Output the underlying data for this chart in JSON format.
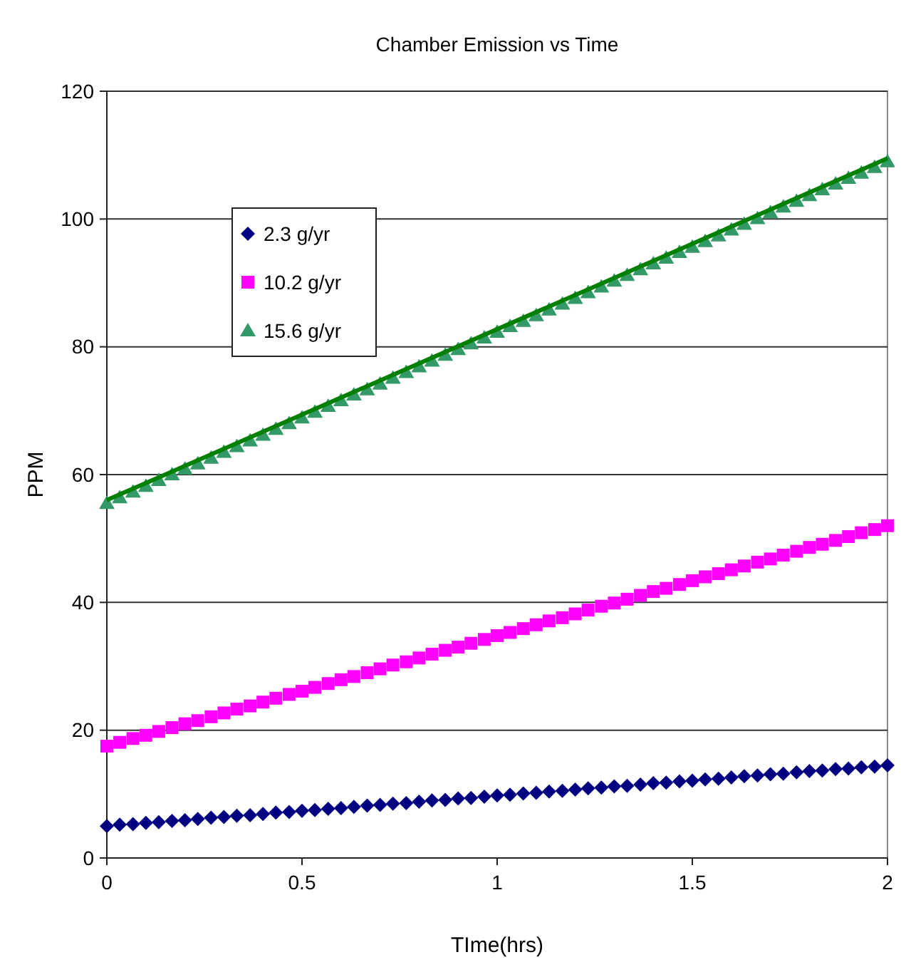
{
  "chart_data": {
    "type": "scatter",
    "title": "Chamber Emission vs Time",
    "xlabel": "TIme(hrs)",
    "ylabel": "PPM",
    "x": [
      0,
      0.033,
      0.067,
      0.1,
      0.133,
      0.167,
      0.2,
      0.233,
      0.267,
      0.3,
      0.333,
      0.367,
      0.4,
      0.433,
      0.467,
      0.5,
      0.533,
      0.567,
      0.6,
      0.633,
      0.667,
      0.7,
      0.733,
      0.767,
      0.8,
      0.833,
      0.867,
      0.9,
      0.933,
      0.967,
      1,
      1.033,
      1.067,
      1.1,
      1.133,
      1.167,
      1.2,
      1.233,
      1.267,
      1.3,
      1.333,
      1.367,
      1.4,
      1.433,
      1.467,
      1.5,
      1.533,
      1.567,
      1.6,
      1.633,
      1.667,
      1.7,
      1.733,
      1.767,
      1.8,
      1.833,
      1.867,
      1.9,
      1.933,
      1.967,
      2
    ],
    "series": [
      {
        "name": "2.3 g/yr",
        "color": "#000080",
        "marker": "diamond",
        "values": [
          5.0,
          5.2,
          5.3,
          5.5,
          5.6,
          5.8,
          5.9,
          6.1,
          6.3,
          6.4,
          6.6,
          6.7,
          6.9,
          7.1,
          7.2,
          7.4,
          7.5,
          7.7,
          7.8,
          8.0,
          8.2,
          8.3,
          8.5,
          8.6,
          8.8,
          9.0,
          9.1,
          9.3,
          9.4,
          9.6,
          9.8,
          9.9,
          10.1,
          10.2,
          10.4,
          10.5,
          10.7,
          10.9,
          11.0,
          11.2,
          11.3,
          11.5,
          11.7,
          11.8,
          12.0,
          12.1,
          12.3,
          12.4,
          12.6,
          12.8,
          12.9,
          13.1,
          13.2,
          13.4,
          13.6,
          13.7,
          13.9,
          14.0,
          14.2,
          14.3,
          14.5
        ]
      },
      {
        "name": "10.2 g/yr",
        "color": "#ff00ff",
        "marker": "square",
        "values": [
          17.5,
          18.1,
          18.7,
          19.2,
          19.8,
          20.4,
          21.0,
          21.5,
          22.1,
          22.7,
          23.3,
          23.8,
          24.4,
          25.0,
          25.6,
          26.1,
          26.7,
          27.3,
          27.9,
          28.4,
          29.0,
          29.6,
          30.2,
          30.7,
          31.3,
          31.9,
          32.5,
          33.0,
          33.6,
          34.2,
          34.8,
          35.3,
          35.9,
          36.5,
          37.1,
          37.6,
          38.2,
          38.8,
          39.4,
          39.9,
          40.5,
          41.1,
          41.7,
          42.2,
          42.8,
          43.4,
          44.0,
          44.5,
          45.1,
          45.7,
          46.3,
          46.8,
          47.4,
          48.0,
          48.6,
          49.1,
          49.7,
          50.3,
          50.9,
          51.4,
          52.0
        ]
      },
      {
        "name": "15.6 g/yr",
        "color": "#339966",
        "marker": "triangle",
        "values": [
          55.5,
          56.4,
          57.3,
          58.2,
          59.1,
          60.0,
          60.9,
          61.7,
          62.6,
          63.5,
          64.4,
          65.3,
          66.2,
          67.1,
          68.0,
          68.9,
          69.8,
          70.7,
          71.6,
          72.5,
          73.3,
          74.2,
          75.1,
          76.0,
          76.9,
          77.8,
          78.7,
          79.6,
          80.5,
          81.4,
          82.3,
          83.2,
          84.0,
          84.9,
          85.8,
          86.7,
          87.6,
          88.5,
          89.4,
          90.3,
          91.2,
          92.1,
          93.0,
          93.9,
          94.8,
          95.6,
          96.5,
          97.4,
          98.3,
          99.2,
          100.1,
          101.0,
          101.9,
          102.8,
          103.7,
          104.6,
          105.5,
          106.4,
          107.2,
          108.1,
          109.0
        ]
      },
      {
        "type": "line",
        "color": "#008000",
        "marker": "none",
        "x": [
          0,
          2
        ],
        "values": [
          56,
          109.5
        ]
      }
    ],
    "xlim": [
      0,
      2
    ],
    "xticks": [
      0,
      0.5,
      1,
      1.5,
      2
    ],
    "ylim": [
      0,
      120
    ],
    "yticks": [
      0,
      20,
      40,
      60,
      80,
      100,
      120
    ],
    "grid": "y",
    "legend": "top left"
  }
}
